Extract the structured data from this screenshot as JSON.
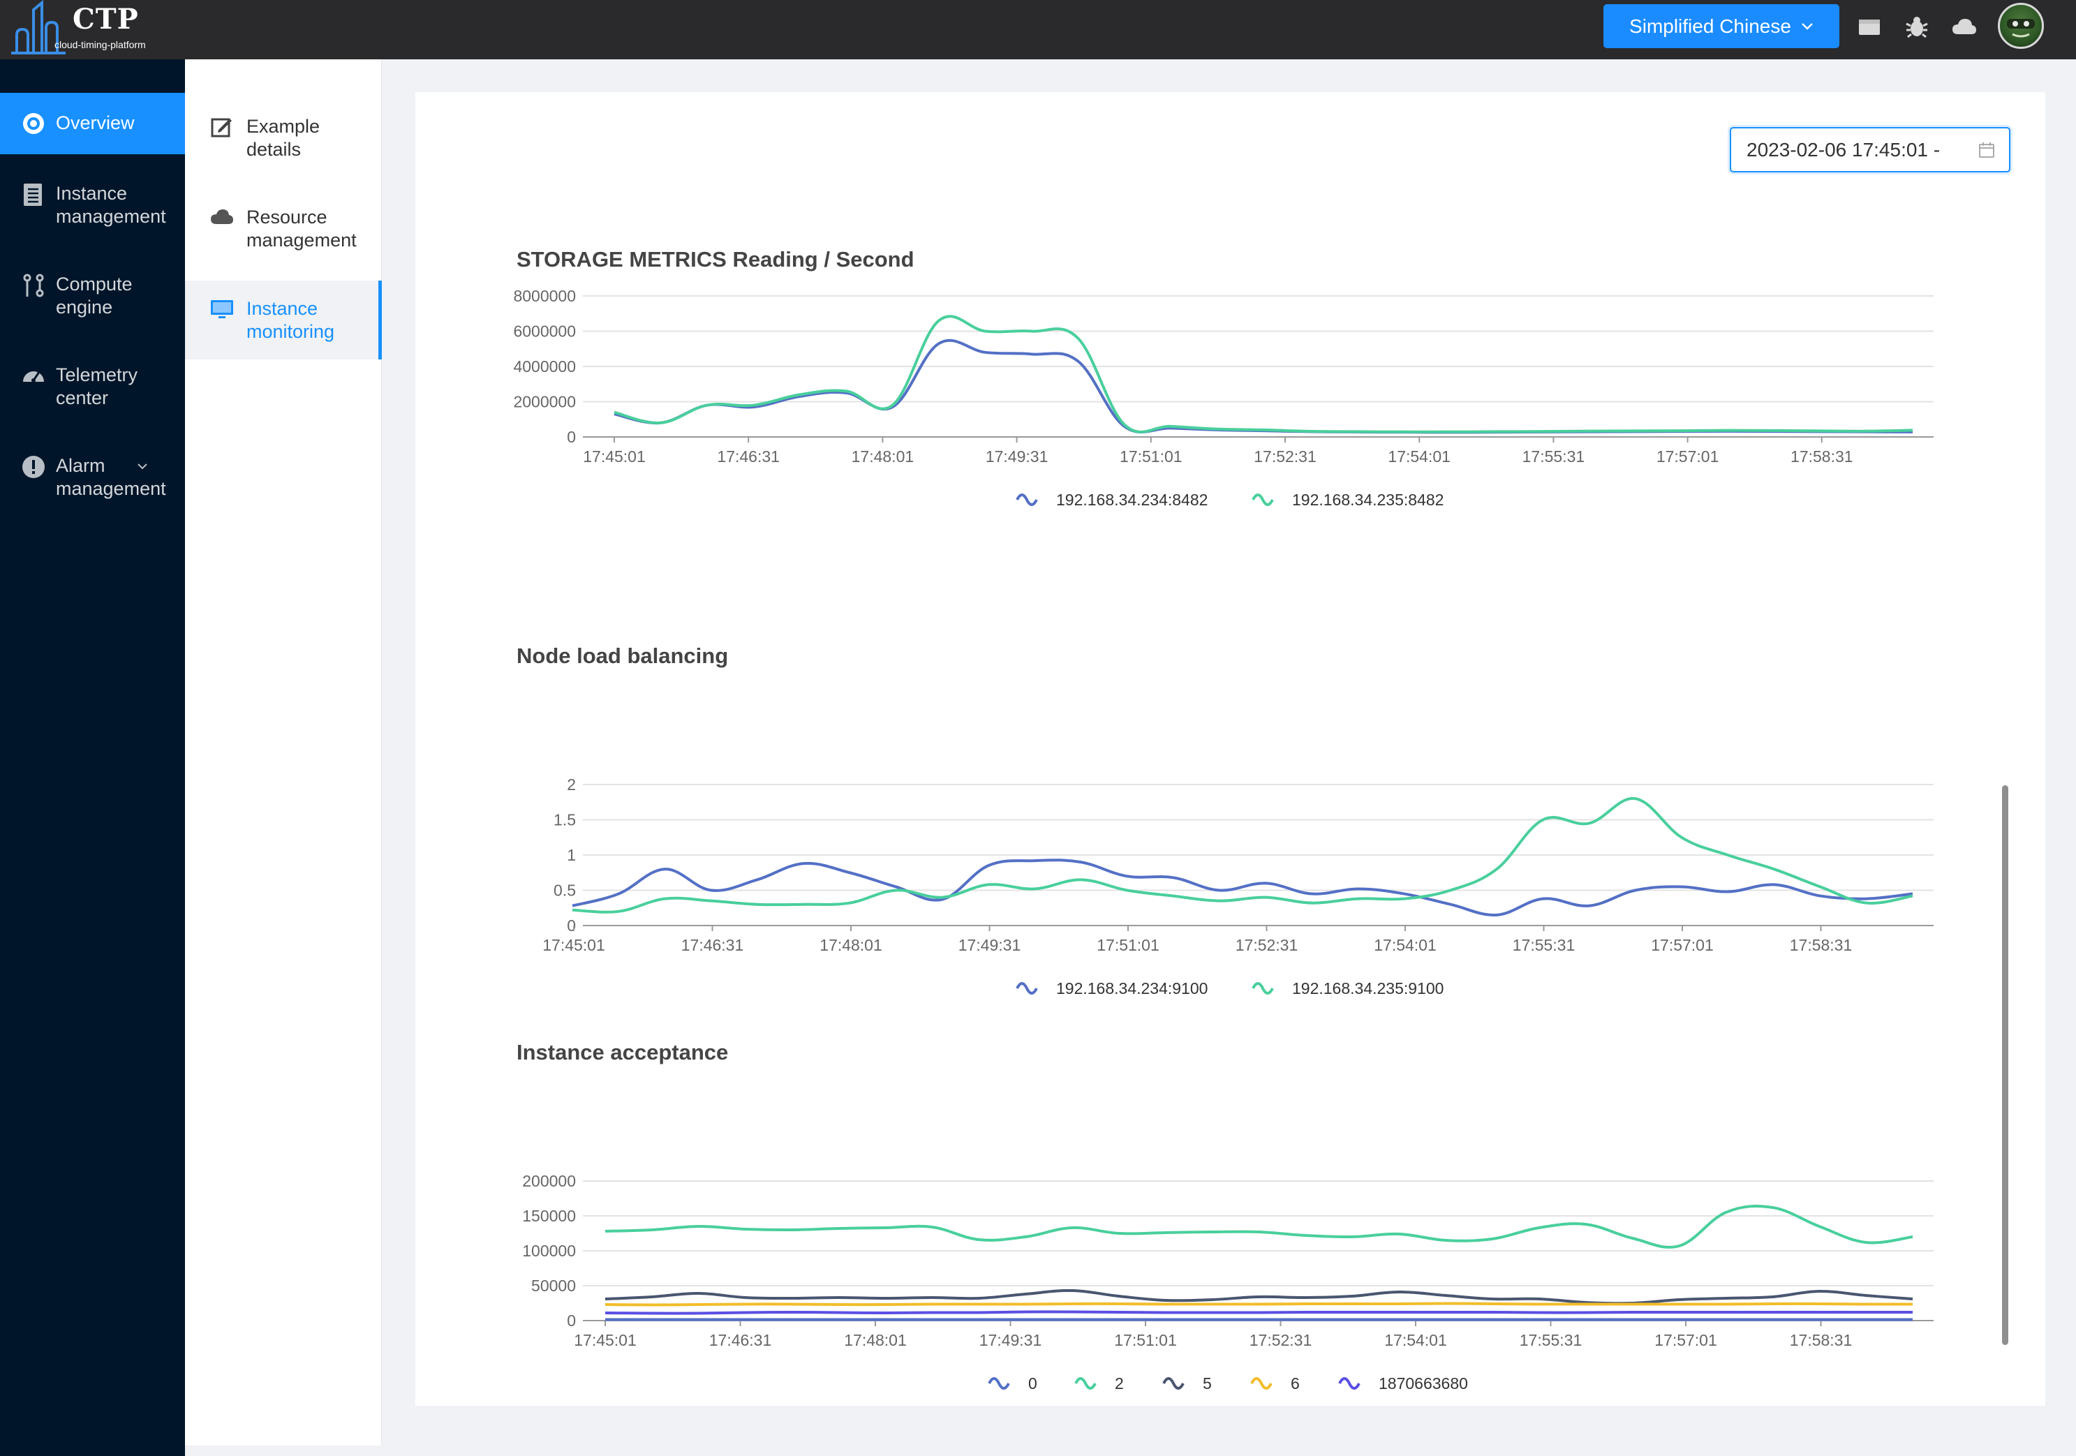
{
  "header": {
    "logo_title": "CTP",
    "logo_subtitle": "cloud-timing-platform",
    "language_button": "Simplified Chinese",
    "icons": [
      "window-icon",
      "bug-icon",
      "cloud-icon"
    ]
  },
  "sidebar": {
    "items": [
      {
        "label": "Overview",
        "icon": "target-icon",
        "active": true
      },
      {
        "label": "Instance\nmanagement",
        "icon": "list-icon"
      },
      {
        "label": "Compute\nengine",
        "icon": "branch-icon"
      },
      {
        "label": "Telemetry\ncenter",
        "icon": "dashboard-icon"
      },
      {
        "label": "Alarm\nmanagement",
        "icon": "alert-icon",
        "expandable": true
      }
    ]
  },
  "submenu": {
    "items": [
      {
        "label": "Example\ndetails",
        "icon": "edit-icon"
      },
      {
        "label": "Resource\nmanagement",
        "icon": "cloud-icon"
      },
      {
        "label": "Instance\nmonitoring",
        "icon": "monitor-icon",
        "active": true
      }
    ]
  },
  "date_range": {
    "start": "2023-02-06 17:45:01 -"
  },
  "colors": {
    "accent": "#1890ff",
    "sidebar_bg": "#001529",
    "topbar_bg": "#2a2a2c",
    "series_blue": "#5470c6",
    "series_green": "#49cf9c",
    "series_dark": "#4a5670",
    "series_yellow": "#f2bd2b",
    "series_purple": "#5b4fe3"
  },
  "chart_data": [
    {
      "type": "line",
      "title": "STORAGE METRICS Reading / Second",
      "x": [
        "17:45:01",
        "17:45:31",
        "17:46:01",
        "17:46:31",
        "17:47:01",
        "17:47:31",
        "17:48:01",
        "17:48:31",
        "17:49:01",
        "17:49:31",
        "17:50:01",
        "17:50:31",
        "17:51:01",
        "17:51:31",
        "17:52:01",
        "17:52:31",
        "17:53:01",
        "17:53:31",
        "17:54:01",
        "17:54:31",
        "17:55:01",
        "17:55:31",
        "17:56:01",
        "17:56:31",
        "17:57:01",
        "17:57:31",
        "17:58:01",
        "17:58:31",
        "17:59:01"
      ],
      "x_ticks": [
        "17:45:01",
        "17:46:31",
        "17:48:01",
        "17:49:31",
        "17:51:01",
        "17:52:31",
        "17:54:01",
        "17:55:31",
        "17:57:01",
        "17:58:31"
      ],
      "ylim": [
        0,
        8000000
      ],
      "y_ticks": [
        "8000000",
        "6000000",
        "4000000",
        "2000000",
        "0"
      ],
      "series": [
        {
          "name": "192.168.34.234:8482",
          "color": "#5470c6",
          "values": [
            1300000,
            800000,
            1800000,
            1700000,
            2300000,
            2500000,
            1700000,
            5300000,
            4800000,
            4700000,
            4300000,
            600000,
            500000,
            400000,
            350000,
            300000,
            280000,
            270000,
            260000,
            270000,
            280000,
            290000,
            300000,
            310000,
            320000,
            310000,
            300000,
            290000,
            280000
          ]
        },
        {
          "name": "192.168.34.235:8482",
          "color": "#49cf9c",
          "values": [
            1400000,
            800000,
            1800000,
            1800000,
            2400000,
            2600000,
            1800000,
            6600000,
            6000000,
            6000000,
            5600000,
            700000,
            600000,
            450000,
            400000,
            320000,
            300000,
            290000,
            290000,
            300000,
            310000,
            330000,
            340000,
            350000,
            370000,
            360000,
            340000,
            330000,
            380000
          ]
        }
      ]
    },
    {
      "type": "line",
      "title": "Node load balancing",
      "x": [
        "17:45:01",
        "17:45:31",
        "17:46:01",
        "17:46:31",
        "17:47:01",
        "17:47:31",
        "17:48:01",
        "17:48:31",
        "17:49:01",
        "17:49:31",
        "17:50:01",
        "17:50:31",
        "17:51:01",
        "17:51:31",
        "17:52:01",
        "17:52:31",
        "17:53:01",
        "17:53:31",
        "17:54:01",
        "17:54:31",
        "17:55:01",
        "17:55:31",
        "17:56:01",
        "17:56:31",
        "17:57:01",
        "17:57:31",
        "17:58:01",
        "17:58:31",
        "17:59:01",
        "17:59:31"
      ],
      "x_ticks": [
        "17:45:01",
        "17:46:31",
        "17:48:01",
        "17:49:31",
        "17:51:01",
        "17:52:31",
        "17:54:01",
        "17:55:31",
        "17:57:01",
        "17:58:31"
      ],
      "ylim": [
        0,
        2
      ],
      "y_ticks": [
        "2",
        "1.5",
        "1",
        "0.5",
        "0"
      ],
      "series": [
        {
          "name": "192.168.34.234:9100",
          "color": "#5470c6",
          "values": [
            0.28,
            0.45,
            0.8,
            0.5,
            0.65,
            0.88,
            0.75,
            0.55,
            0.37,
            0.85,
            0.92,
            0.9,
            0.7,
            0.68,
            0.5,
            0.6,
            0.45,
            0.52,
            0.45,
            0.3,
            0.15,
            0.38,
            0.28,
            0.5,
            0.55,
            0.48,
            0.58,
            0.42,
            0.38,
            0.45
          ]
        },
        {
          "name": "192.168.34.235:9100",
          "color": "#49cf9c",
          "values": [
            0.22,
            0.2,
            0.38,
            0.35,
            0.3,
            0.3,
            0.32,
            0.5,
            0.4,
            0.58,
            0.52,
            0.65,
            0.5,
            0.42,
            0.35,
            0.4,
            0.32,
            0.38,
            0.38,
            0.5,
            0.8,
            1.5,
            1.45,
            1.8,
            1.25,
            1.0,
            0.8,
            0.55,
            0.32,
            0.42
          ]
        }
      ]
    },
    {
      "type": "line",
      "title": "Instance acceptance",
      "x": [
        "17:45:01",
        "17:45:31",
        "17:46:01",
        "17:46:31",
        "17:47:01",
        "17:47:31",
        "17:48:01",
        "17:48:31",
        "17:49:01",
        "17:49:31",
        "17:50:01",
        "17:50:31",
        "17:51:01",
        "17:51:31",
        "17:52:01",
        "17:52:31",
        "17:53:01",
        "17:53:31",
        "17:54:01",
        "17:54:31",
        "17:55:01",
        "17:55:31",
        "17:56:01",
        "17:56:31",
        "17:57:01",
        "17:57:31",
        "17:58:01",
        "17:58:31",
        "17:59:01"
      ],
      "x_ticks": [
        "17:45:01",
        "17:46:31",
        "17:48:01",
        "17:49:31",
        "17:51:01",
        "17:52:31",
        "17:54:01",
        "17:55:31",
        "17:57:01",
        "17:58:31"
      ],
      "ylim": [
        0,
        200000
      ],
      "y_ticks": [
        "200000",
        "150000",
        "100000",
        "50000",
        "0"
      ],
      "series": [
        {
          "name": "0",
          "color": "#5470c6",
          "values": [
            1500,
            1500,
            1500,
            1500,
            1500,
            1500,
            1500,
            1500,
            1500,
            1500,
            1500,
            1500,
            1500,
            1500,
            1500,
            1500,
            1500,
            1500,
            1500,
            1500,
            1500,
            1500,
            1500,
            1500,
            1500,
            1500,
            1500,
            1500,
            1500
          ]
        },
        {
          "name": "2",
          "color": "#49cf9c",
          "values": [
            128000,
            130000,
            135000,
            131000,
            130000,
            132000,
            133000,
            134000,
            116000,
            120000,
            133000,
            125000,
            126000,
            127000,
            127000,
            122000,
            120000,
            124000,
            115000,
            117000,
            133000,
            138000,
            118000,
            107000,
            155000,
            162000,
            135000,
            112000,
            120000
          ]
        },
        {
          "name": "5",
          "color": "#4a5670",
          "values": [
            31000,
            34000,
            39000,
            33000,
            32000,
            33000,
            32000,
            33000,
            32000,
            38000,
            43000,
            35000,
            29000,
            30000,
            34000,
            33000,
            35000,
            41000,
            36000,
            31000,
            31000,
            26000,
            25000,
            30000,
            32000,
            34000,
            42000,
            36000,
            31000
          ]
        },
        {
          "name": "6",
          "color": "#f2bd2b",
          "values": [
            23000,
            22500,
            23000,
            23500,
            23500,
            23000,
            23000,
            23500,
            23500,
            23500,
            24000,
            24000,
            23500,
            23500,
            23500,
            24000,
            24000,
            24000,
            24500,
            24000,
            23500,
            23500,
            23500,
            23500,
            23500,
            24000,
            24000,
            23500,
            23500
          ]
        },
        {
          "name": "1870663680",
          "color": "#5b4fe3",
          "values": [
            11000,
            10500,
            10500,
            11500,
            12000,
            11500,
            11000,
            11500,
            11500,
            12500,
            12500,
            12000,
            11500,
            11500,
            11500,
            12000,
            12000,
            12000,
            12000,
            12000,
            11500,
            11500,
            12000,
            12000,
            12000,
            12000,
            12000,
            12000,
            12000
          ]
        }
      ]
    }
  ]
}
